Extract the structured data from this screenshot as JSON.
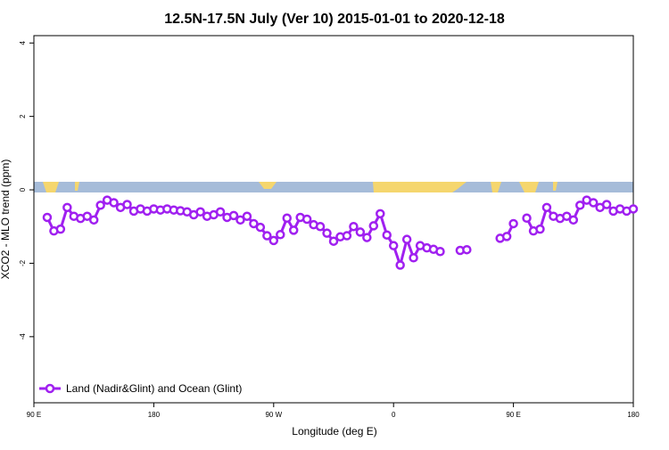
{
  "chart_data": {
    "type": "line",
    "title": "12.5N-17.5N July (Ver 10)   2015-01-01 to 2020-12-18",
    "x_label": "Longitude (deg E)",
    "y_label": "XCO2 - MLO trend (ppm)",
    "x": [
      100,
      105,
      110,
      115,
      120,
      125,
      130,
      135,
      140,
      145,
      150,
      155,
      160,
      165,
      170,
      175,
      180,
      185,
      190,
      195,
      200,
      205,
      210,
      215,
      220,
      225,
      230,
      235,
      240,
      245,
      250,
      255,
      260,
      265,
      270,
      275,
      280,
      285,
      290,
      295,
      300,
      305,
      310,
      315,
      320,
      325,
      330,
      335,
      340,
      345,
      350,
      355,
      360,
      365,
      370,
      375,
      380,
      385,
      390,
      395,
      400,
      405,
      410,
      415,
      420,
      425,
      430,
      435,
      440,
      445,
      450,
      455,
      460,
      465,
      470,
      475,
      480,
      485,
      490,
      495,
      500,
      505,
      510,
      515,
      520,
      525,
      530,
      535,
      540
    ],
    "series": [
      {
        "name": "Land (Nadir&Glint) and Ocean (Glint)",
        "color": "#a020f0",
        "values": [
          -0.75,
          -1.12,
          -1.07,
          -0.48,
          -0.72,
          -0.78,
          -0.72,
          -0.82,
          -0.42,
          -0.28,
          -0.35,
          -0.48,
          -0.4,
          -0.58,
          -0.52,
          -0.58,
          -0.52,
          -0.55,
          -0.52,
          -0.55,
          -0.57,
          -0.6,
          -0.68,
          -0.6,
          -0.72,
          -0.68,
          -0.6,
          -0.75,
          -0.7,
          -0.82,
          -0.72,
          -0.92,
          -1.02,
          -1.25,
          -1.38,
          -1.22,
          -0.77,
          -1.1,
          -0.75,
          -0.8,
          -0.95,
          -1.0,
          -1.18,
          -1.4,
          -1.28,
          -1.25,
          -1.0,
          -1.15,
          -1.3,
          -0.98,
          -0.65,
          -1.23,
          -1.52,
          -2.05,
          -1.35,
          -1.85,
          -1.52,
          -1.58,
          -1.62,
          -1.68,
          null,
          null,
          -1.65,
          -1.63,
          null,
          null,
          null,
          null,
          -1.32,
          -1.27,
          -0.92,
          null,
          -0.77,
          -1.12,
          -1.07,
          -0.48,
          -0.72,
          -0.78,
          -0.72,
          -0.82,
          -0.42,
          -0.28,
          -0.35,
          -0.48,
          -0.4,
          -0.58,
          -0.52,
          -0.58,
          -0.52
        ]
      }
    ],
    "xlim": [
      90,
      540
    ],
    "ylim": [
      -5.8,
      4.2
    ],
    "xticks": [
      {
        "value": 90,
        "label": "90 E"
      },
      180,
      {
        "value": 270,
        "label": "90 W"
      },
      {
        "value": 360,
        "label": "0"
      },
      {
        "value": 450,
        "label": "90 E"
      },
      {
        "value": 540,
        "label": "180"
      }
    ],
    "yticks": [
      -4,
      -2,
      0,
      2,
      4
    ],
    "legend": "bottom-left"
  }
}
